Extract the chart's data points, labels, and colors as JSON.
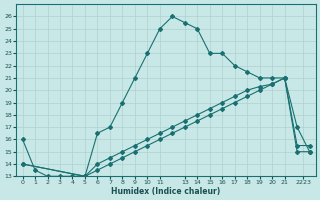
{
  "xlabel": "Humidex (Indice chaleur)",
  "background_color": "#c8e8e8",
  "line_color": "#1a7070",
  "grid_color": "#b0d0d0",
  "ylim": [
    13,
    27
  ],
  "xlim": [
    -0.5,
    23.5
  ],
  "ytick_labels": [
    "13",
    "14",
    "15",
    "16",
    "17",
    "18",
    "19",
    "20",
    "21",
    "22",
    "23",
    "24",
    "25",
    "26"
  ],
  "ytick_vals": [
    13,
    14,
    15,
    16,
    17,
    18,
    19,
    20,
    21,
    22,
    23,
    24,
    25,
    26
  ],
  "xtick_vals": [
    0,
    1,
    2,
    3,
    4,
    5,
    6,
    7,
    8,
    9,
    10,
    11,
    13,
    14,
    15,
    16,
    17,
    18,
    19,
    20,
    21,
    22.5
  ],
  "xtick_labels": [
    "0",
    "1",
    "2",
    "3",
    "4",
    "5",
    "6",
    "7",
    "8",
    "9",
    "10",
    "11",
    "13",
    "14",
    "15",
    "16",
    "17",
    "18",
    "19",
    "20",
    "21",
    "2223"
  ],
  "line1_x": [
    0,
    1,
    2,
    3,
    4,
    5,
    6,
    7,
    8,
    9,
    10,
    11,
    12,
    13,
    14,
    15,
    16,
    17,
    18,
    19,
    20,
    21,
    22,
    23
  ],
  "line1_y": [
    16,
    13.5,
    13,
    13,
    13,
    13,
    16.5,
    17,
    19,
    21,
    23,
    25,
    26,
    25.5,
    25,
    23,
    23,
    22,
    21.5,
    21,
    21,
    21,
    17,
    15
  ],
  "line2_x": [
    0,
    5,
    6,
    7,
    8,
    9,
    10,
    11,
    12,
    13,
    14,
    15,
    16,
    17,
    18,
    19,
    20,
    21,
    22,
    23
  ],
  "line2_y": [
    14,
    13,
    14,
    14.5,
    15,
    15.5,
    16,
    16.5,
    17,
    17.5,
    18,
    18.5,
    19,
    19.5,
    20,
    20.3,
    20.5,
    21,
    15.5,
    15.5
  ],
  "line3_x": [
    0,
    5,
    6,
    7,
    8,
    9,
    10,
    11,
    12,
    13,
    14,
    15,
    16,
    17,
    18,
    19,
    20,
    21,
    22,
    23
  ],
  "line3_y": [
    14,
    13,
    13.5,
    14,
    14.5,
    15,
    15.5,
    16,
    16.5,
    17,
    17.5,
    18,
    18.5,
    19,
    19.5,
    20,
    20.5,
    21,
    15,
    15
  ]
}
